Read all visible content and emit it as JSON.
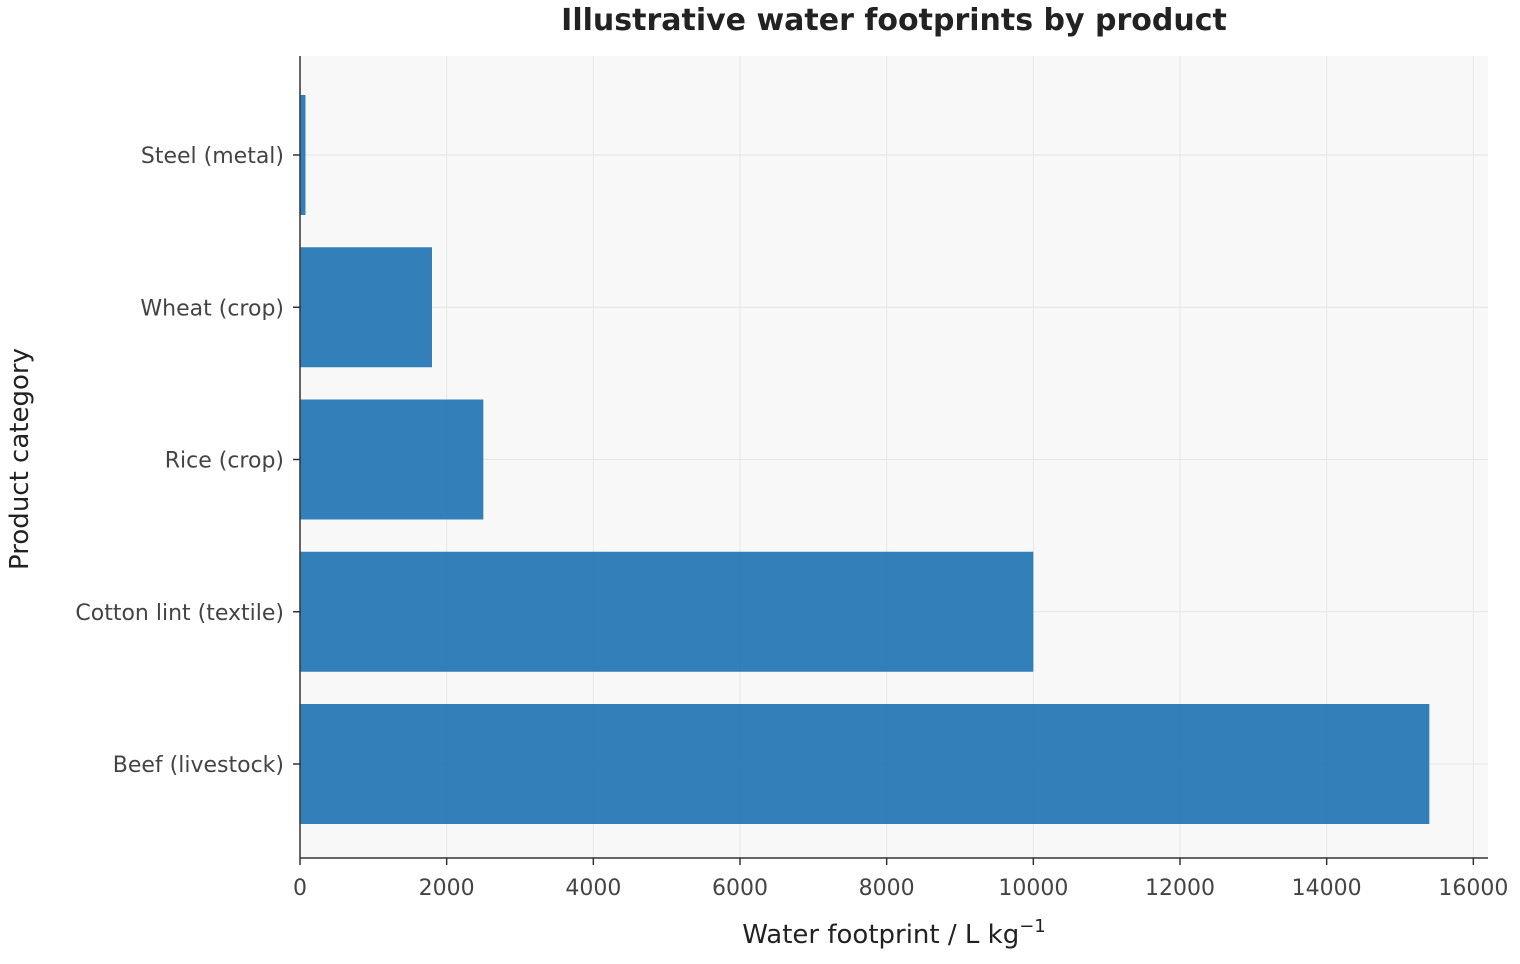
{
  "chart_data": {
    "type": "bar",
    "orientation": "horizontal",
    "title": "Illustrative water footprints by product",
    "xlabel": "Water footprint / L kg",
    "xlabel_superscript": "−1",
    "ylabel": "Product category",
    "categories": [
      "Steel (metal)",
      "Wheat (crop)",
      "Rice (crop)",
      "Cotton lint (textile)",
      "Beef (livestock)"
    ],
    "values": [
      75,
      1800,
      2500,
      10000,
      15400
    ],
    "xlim": [
      0,
      16200
    ],
    "xticks": [
      0,
      2000,
      4000,
      6000,
      8000,
      10000,
      12000,
      14000,
      16000
    ],
    "grid": true,
    "legend": "none",
    "colors": {
      "bar": "#2878b5",
      "plot_background": "#f8f8f8",
      "grid": "#e6e6e6",
      "axis": "#333333"
    }
  }
}
